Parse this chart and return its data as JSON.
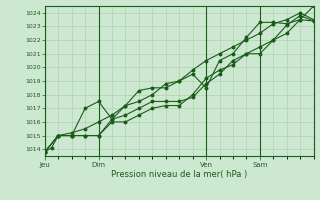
{
  "background_color": "#cce8d0",
  "plot_bg_color": "#cce8d0",
  "grid_color": "#aaccaa",
  "line_color": "#1a5c1a",
  "marker_color": "#1a5c1a",
  "ylabel_ticks": [
    1014,
    1015,
    1016,
    1017,
    1018,
    1019,
    1020,
    1021,
    1022,
    1023,
    1024
  ],
  "ylim": [
    1013.5,
    1024.5
  ],
  "xlabel": "Pression niveau de la mer( hPa )",
  "day_labels": [
    "Jeu",
    "Dim",
    "Ven",
    "Sam"
  ],
  "day_positions": [
    0,
    48,
    144,
    192
  ],
  "total_hours": 240,
  "series1": {
    "x": [
      0,
      6,
      12,
      24,
      36,
      48,
      60,
      72,
      84,
      96,
      108,
      120,
      132,
      144,
      156,
      168,
      180,
      192,
      204,
      216,
      228,
      240
    ],
    "y": [
      1013.8,
      1014.1,
      1015.0,
      1015.0,
      1017.0,
      1017.5,
      1016.2,
      1017.2,
      1018.3,
      1018.5,
      1018.5,
      1019.0,
      1019.5,
      1018.5,
      1020.5,
      1021.0,
      1022.2,
      1023.3,
      1023.3,
      1023.2,
      1023.5,
      1024.5
    ]
  },
  "series2": {
    "x": [
      0,
      12,
      24,
      36,
      48,
      60,
      72,
      84,
      96,
      108,
      120,
      132,
      144,
      156,
      168,
      180,
      192,
      204,
      216,
      228,
      240
    ],
    "y": [
      1013.8,
      1015.0,
      1015.0,
      1015.0,
      1015.0,
      1016.0,
      1016.0,
      1016.5,
      1017.0,
      1017.2,
      1017.2,
      1018.0,
      1019.2,
      1019.8,
      1020.2,
      1021.0,
      1021.0,
      1022.0,
      1023.1,
      1023.8,
      1023.4
    ]
  },
  "series3": {
    "x": [
      0,
      12,
      24,
      36,
      48,
      60,
      72,
      84,
      96,
      108,
      120,
      132,
      144,
      156,
      168,
      180,
      192,
      204,
      216,
      228,
      240
    ],
    "y": [
      1013.8,
      1015.0,
      1015.0,
      1015.0,
      1015.0,
      1016.2,
      1016.5,
      1017.0,
      1017.5,
      1017.5,
      1017.5,
      1017.8,
      1018.8,
      1019.5,
      1020.5,
      1021.0,
      1021.5,
      1022.0,
      1022.5,
      1023.5,
      1023.4
    ]
  },
  "series4": {
    "x": [
      0,
      12,
      24,
      36,
      48,
      60,
      72,
      84,
      96,
      108,
      120,
      132,
      144,
      156,
      168,
      180,
      192,
      204,
      216,
      228,
      240
    ],
    "y": [
      1013.8,
      1015.0,
      1015.2,
      1015.5,
      1016.0,
      1016.5,
      1017.2,
      1017.5,
      1018.0,
      1018.8,
      1019.0,
      1019.8,
      1020.5,
      1021.0,
      1021.5,
      1022.0,
      1022.5,
      1023.2,
      1023.5,
      1024.0,
      1023.5
    ]
  }
}
